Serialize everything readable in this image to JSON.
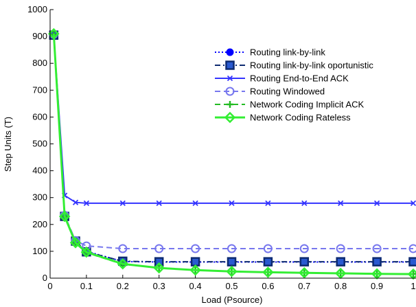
{
  "chart_data": {
    "type": "line",
    "title": "",
    "xlabel": "Load (Psource)",
    "ylabel": "Step Units (T)",
    "xlim": [
      0,
      1
    ],
    "ylim": [
      0,
      1000
    ],
    "x_ticks": [
      "0",
      "0.1",
      "0.2",
      "0.3",
      "0.4",
      "0.5",
      "0.6",
      "0.7",
      "0.8",
      "0.9",
      "1"
    ],
    "y_ticks": [
      "0",
      "100",
      "200",
      "300",
      "400",
      "500",
      "600",
      "700",
      "800",
      "900",
      "1000"
    ],
    "grid": false,
    "legend_position": "top-right",
    "series": [
      {
        "name": "Routing link-by-link",
        "color": "#0000ff",
        "line_style": "dotted",
        "marker": "filled-circle",
        "x": [
          0.01,
          0.04,
          0.07,
          0.1,
          0.2,
          0.3,
          0.4,
          0.5,
          0.6,
          0.7,
          0.8,
          0.9,
          1.0
        ],
        "y": [
          910,
          232,
          135,
          100,
          62,
          60,
          60,
          60,
          60,
          60,
          60,
          60,
          60
        ]
      },
      {
        "name": "Routing  link-by-link oportunistic",
        "color": "#0d2a70",
        "line_style": "dashdot",
        "marker": "square",
        "x": [
          0.01,
          0.04,
          0.07,
          0.1,
          0.2,
          0.3,
          0.4,
          0.5,
          0.6,
          0.7,
          0.8,
          0.9,
          1.0
        ],
        "y": [
          905,
          230,
          138,
          98,
          63,
          61,
          61,
          61,
          61,
          61,
          61,
          61,
          61
        ]
      },
      {
        "name": "Routing End-to-End ACK",
        "color": "#3333ff",
        "line_style": "solid",
        "marker": "x",
        "x": [
          0.01,
          0.04,
          0.07,
          0.1,
          0.2,
          0.3,
          0.4,
          0.5,
          0.6,
          0.7,
          0.8,
          0.9,
          1.0
        ],
        "y": [
          905,
          308,
          282,
          279,
          279,
          279,
          279,
          279,
          279,
          279,
          279,
          279,
          279
        ]
      },
      {
        "name": "Routing Windowed",
        "color": "#7777ee",
        "line_style": "dashed",
        "marker": "open-circle",
        "x": [
          0.01,
          0.04,
          0.07,
          0.1,
          0.2,
          0.3,
          0.4,
          0.5,
          0.6,
          0.7,
          0.8,
          0.9,
          1.0
        ],
        "y": [
          908,
          234,
          140,
          120,
          110,
          110,
          110,
          110,
          110,
          110,
          110,
          110,
          110
        ]
      },
      {
        "name": "Network Coding Implicit ACK",
        "color": "#22bb22",
        "line_style": "dashed",
        "marker": "plus",
        "x": [
          0.01,
          0.04,
          0.07,
          0.1,
          0.2,
          0.3,
          0.4,
          0.5,
          0.6,
          0.7,
          0.8,
          0.9,
          1.0
        ],
        "y": [
          908,
          230,
          130,
          95,
          52,
          38,
          30,
          25,
          22,
          20,
          18,
          17,
          16
        ]
      },
      {
        "name": "Network Coding Rateless",
        "color": "#33ee33",
        "line_style": "solid",
        "marker": "diamond",
        "x": [
          0.01,
          0.04,
          0.07,
          0.1,
          0.2,
          0.3,
          0.4,
          0.5,
          0.6,
          0.7,
          0.8,
          0.9,
          1.0
        ],
        "y": [
          910,
          230,
          132,
          97,
          53,
          38,
          30,
          25,
          22,
          20,
          18,
          16,
          15
        ]
      }
    ]
  }
}
